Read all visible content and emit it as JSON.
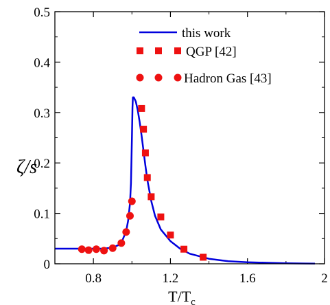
{
  "chart_data": {
    "type": "line",
    "xlabel": "T/T",
    "xlabel_sub": "c",
    "ylabel": "ζ/s",
    "xlim": [
      0.6,
      2.0
    ],
    "ylim": [
      0,
      0.5
    ],
    "xticks": [
      0.8,
      1.2,
      1.6,
      2
    ],
    "xtick_labels": [
      "0.8",
      "1.2",
      "1.6",
      "2"
    ],
    "yticks": [
      0,
      0.1,
      0.2,
      0.3,
      0.4,
      0.5
    ],
    "ytick_labels": [
      "0",
      "0.1",
      "0.2",
      "0.3",
      "0.4",
      "0.5"
    ],
    "grid": false,
    "legend_position": "top-right",
    "series": [
      {
        "name": "this work",
        "kind": "line",
        "color": "#0000dd",
        "x": [
          0.6,
          0.7,
          0.8,
          0.85,
          0.9,
          0.93,
          0.95,
          0.97,
          0.98,
          0.99,
          0.995,
          1.0,
          1.003,
          1.005,
          1.01,
          1.02,
          1.03,
          1.04,
          1.05,
          1.06,
          1.07,
          1.08,
          1.1,
          1.12,
          1.15,
          1.2,
          1.25,
          1.3,
          1.4,
          1.5,
          1.6,
          1.7,
          1.8,
          1.9,
          1.95
        ],
        "y": [
          0.03,
          0.03,
          0.03,
          0.03,
          0.032,
          0.037,
          0.046,
          0.065,
          0.085,
          0.12,
          0.16,
          0.25,
          0.31,
          0.33,
          0.33,
          0.322,
          0.305,
          0.282,
          0.255,
          0.225,
          0.195,
          0.167,
          0.125,
          0.095,
          0.068,
          0.045,
          0.03,
          0.02,
          0.01,
          0.005,
          0.003,
          0.002,
          0.001,
          0.0005,
          0.0003
        ]
      },
      {
        "name": "QGP [42]",
        "kind": "squares",
        "color": "#ee1111",
        "x": [
          1.05,
          1.06,
          1.07,
          1.08,
          1.1,
          1.15,
          1.2,
          1.27,
          1.37
        ],
        "y": [
          0.308,
          0.267,
          0.22,
          0.171,
          0.133,
          0.093,
          0.057,
          0.029,
          0.013
        ]
      },
      {
        "name": "Hadron Gas [43]",
        "kind": "circles",
        "color": "#ee1111",
        "x": [
          0.74,
          0.775,
          0.815,
          0.855,
          0.9,
          0.945,
          0.97,
          0.99,
          1.0
        ],
        "y": [
          0.029,
          0.027,
          0.029,
          0.026,
          0.031,
          0.041,
          0.063,
          0.095,
          0.124
        ]
      }
    ]
  }
}
